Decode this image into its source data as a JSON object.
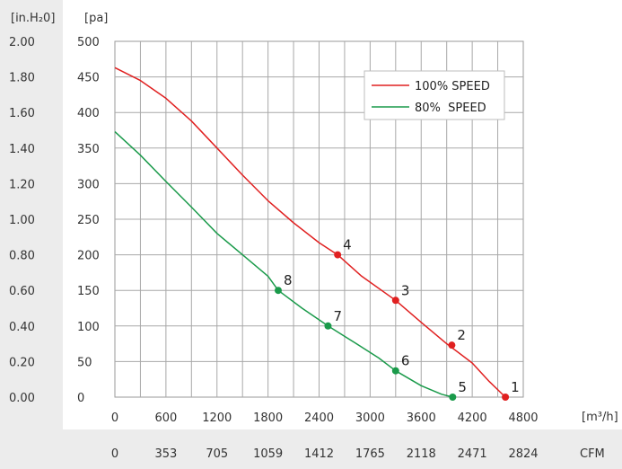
{
  "chart_data": {
    "type": "line",
    "x_unit_primary": "[m³/h]",
    "x_unit_secondary": "CFM",
    "y_unit_left": "[in.H₂0]",
    "y_unit_right": "[pa]",
    "x_ticks_primary": [
      "0",
      "600",
      "1200",
      "1800",
      "2400",
      "3000",
      "3600",
      "4200",
      "4800"
    ],
    "x_ticks_secondary": [
      "0",
      "353",
      "705",
      "1059",
      "1412",
      "1765",
      "2118",
      "2471",
      "2824"
    ],
    "y_ticks_pa": [
      "0",
      "50",
      "100",
      "150",
      "200",
      "250",
      "300",
      "350",
      "400",
      "450",
      "500"
    ],
    "y_ticks_inh2o": [
      "0.00",
      "0.20",
      "0.40",
      "0.60",
      "0.80",
      "1.00",
      "1.20",
      "1.40",
      "1.60",
      "1.80",
      "2.00"
    ],
    "xlim": [
      0,
      4800
    ],
    "ylim": [
      0,
      500
    ],
    "grid": true,
    "legend_position": "top-right",
    "series": [
      {
        "name": "100% SPEED",
        "color": "#e02020",
        "curve": [
          [
            0,
            463
          ],
          [
            300,
            445
          ],
          [
            600,
            420
          ],
          [
            900,
            388
          ],
          [
            1200,
            350
          ],
          [
            1500,
            312
          ],
          [
            1800,
            276
          ],
          [
            2100,
            245
          ],
          [
            2400,
            217
          ],
          [
            2618,
            200
          ],
          [
            2900,
            170
          ],
          [
            3300,
            136
          ],
          [
            3600,
            105
          ],
          [
            3900,
            75
          ],
          [
            4200,
            48
          ],
          [
            4400,
            22
          ],
          [
            4590,
            0
          ]
        ],
        "points": [
          {
            "label": "1",
            "x": 4590,
            "y": 0
          },
          {
            "label": "2",
            "x": 3960,
            "y": 73
          },
          {
            "label": "3",
            "x": 3300,
            "y": 136
          },
          {
            "label": "4",
            "x": 2618,
            "y": 200
          }
        ]
      },
      {
        "name": "80%  SPEED",
        "color": "#1a9a4a",
        "curve": [
          [
            0,
            373
          ],
          [
            300,
            340
          ],
          [
            600,
            303
          ],
          [
            900,
            267
          ],
          [
            1200,
            230
          ],
          [
            1500,
            200
          ],
          [
            1800,
            170
          ],
          [
            1920,
            150
          ],
          [
            2200,
            125
          ],
          [
            2505,
            100
          ],
          [
            2800,
            78
          ],
          [
            3100,
            55
          ],
          [
            3300,
            37
          ],
          [
            3600,
            16
          ],
          [
            3840,
            4
          ],
          [
            3970,
            0
          ]
        ],
        "points": [
          {
            "label": "5",
            "x": 3970,
            "y": 0
          },
          {
            "label": "6",
            "x": 3300,
            "y": 37
          },
          {
            "label": "7",
            "x": 2505,
            "y": 100
          },
          {
            "label": "8",
            "x": 1920,
            "y": 150
          }
        ]
      }
    ]
  }
}
